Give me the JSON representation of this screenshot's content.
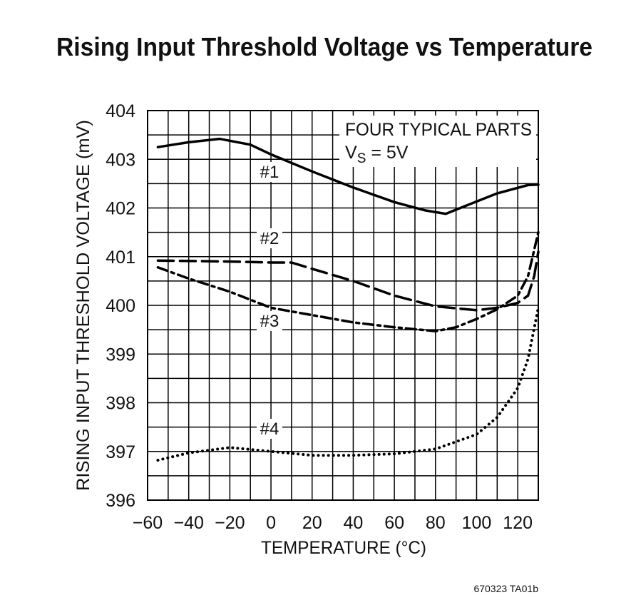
{
  "chart_data": {
    "type": "line",
    "title": "Rising Input Threshold Voltage vs Temperature",
    "x_label": "TEMPERATURE (°C)",
    "y_label": "RISING INPUT THRESHOLD VOLTAGE (mV)",
    "annotation": "FOUR TYPICAL PARTS",
    "condition": {
      "symbol": "V",
      "subscript": "S",
      "text": " = 5V"
    },
    "footnote": "670323 TA01b",
    "xlim": [
      -60,
      130
    ],
    "ylim": [
      396,
      404
    ],
    "xticks": [
      {
        "value": -60,
        "label": "−60"
      },
      {
        "value": -40,
        "label": "−40"
      },
      {
        "value": -20,
        "label": "−20"
      },
      0,
      20,
      40,
      60,
      80,
      100,
      120
    ],
    "yticks": [
      396,
      397,
      398,
      399,
      400,
      401,
      402,
      403,
      404
    ],
    "xgrid": [
      -60,
      -50,
      -40,
      -30,
      -20,
      -10,
      0,
      10,
      20,
      30,
      40,
      50,
      60,
      70,
      80,
      90,
      100,
      110,
      120,
      130
    ],
    "ygrid": [
      396,
      396.5,
      397,
      397.5,
      398,
      398.5,
      399,
      399.5,
      400,
      400.5,
      401,
      401.5,
      402,
      402.5,
      403,
      403.5,
      404
    ],
    "grid": true,
    "series": [
      {
        "name": "#1",
        "color": "#000000",
        "dash": "solid",
        "x": [
          -55,
          -40,
          -25,
          -10,
          0,
          20,
          40,
          60,
          75,
          85,
          95,
          110,
          125,
          130
        ],
        "values": [
          403.25,
          403.35,
          403.42,
          403.3,
          403.1,
          402.75,
          402.42,
          402.12,
          401.95,
          401.88,
          402.05,
          402.3,
          402.47,
          402.48
        ]
      },
      {
        "name": "#2",
        "color": "#000000",
        "dash": "long-dash",
        "x": [
          -55,
          -20,
          0,
          10,
          20,
          40,
          60,
          80,
          100,
          110,
          120,
          125,
          128,
          130
        ],
        "values": [
          400.92,
          400.9,
          400.88,
          400.88,
          400.75,
          400.5,
          400.2,
          399.98,
          399.9,
          399.95,
          400.05,
          400.2,
          400.6,
          401.1
        ]
      },
      {
        "name": "#3",
        "color": "#000000",
        "dash": "dash-dot",
        "x": [
          -55,
          -40,
          -20,
          0,
          20,
          40,
          60,
          80,
          90,
          100,
          110,
          120,
          125,
          130
        ],
        "values": [
          400.78,
          400.55,
          400.28,
          399.95,
          399.8,
          399.65,
          399.55,
          399.47,
          399.55,
          399.72,
          399.92,
          400.2,
          400.6,
          401.5
        ]
      },
      {
        "name": "#4",
        "color": "#000000",
        "dash": "dotted",
        "x": [
          -55,
          -40,
          -20,
          0,
          20,
          40,
          60,
          80,
          100,
          110,
          120,
          125,
          130
        ],
        "values": [
          396.82,
          396.97,
          397.08,
          397.0,
          396.92,
          396.92,
          396.95,
          397.05,
          397.35,
          397.7,
          398.3,
          398.9,
          399.95
        ]
      }
    ]
  }
}
